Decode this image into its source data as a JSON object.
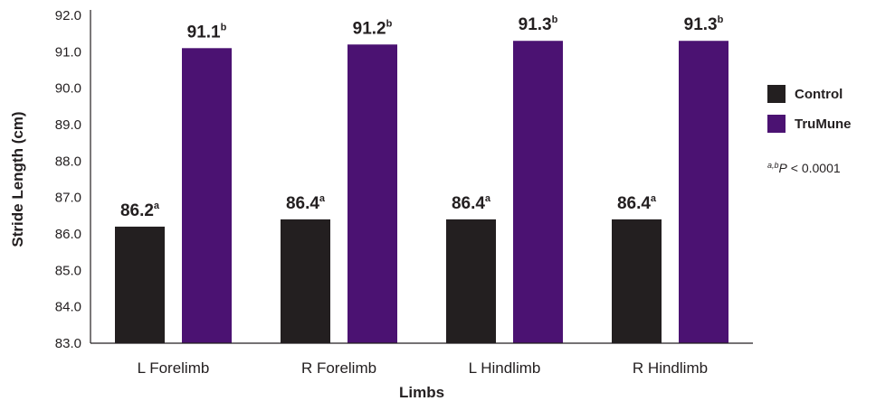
{
  "chart_data": {
    "type": "bar",
    "title": "",
    "xlabel": "Limbs",
    "ylabel": "Stride Length (cm)",
    "ylim": [
      83.0,
      92.0
    ],
    "yticks": [
      "92.0",
      "91.0",
      "90.0",
      "89.0",
      "88.0",
      "87.0",
      "86.0",
      "85.0",
      "84.0",
      "83.0"
    ],
    "categories": [
      "L Forelimb",
      "R Forelimb",
      "L Hindlimb",
      "R Hindlimb"
    ],
    "series": [
      {
        "name": "Control",
        "color": "#231f20",
        "values": [
          86.2,
          86.4,
          86.4,
          86.4
        ],
        "labels": [
          "86.2",
          "86.4",
          "86.4",
          "86.4"
        ],
        "superscript": "a"
      },
      {
        "name": "TruMune",
        "color": "#4b1272",
        "values": [
          91.1,
          91.2,
          91.3,
          91.3
        ],
        "labels": [
          "91.1",
          "91.2",
          "91.3",
          "91.3"
        ],
        "superscript": "b"
      }
    ],
    "legend_position": "right",
    "grid": false,
    "note": {
      "superscript": "a,b",
      "symbol": "P",
      "text": " < 0.0001"
    }
  }
}
